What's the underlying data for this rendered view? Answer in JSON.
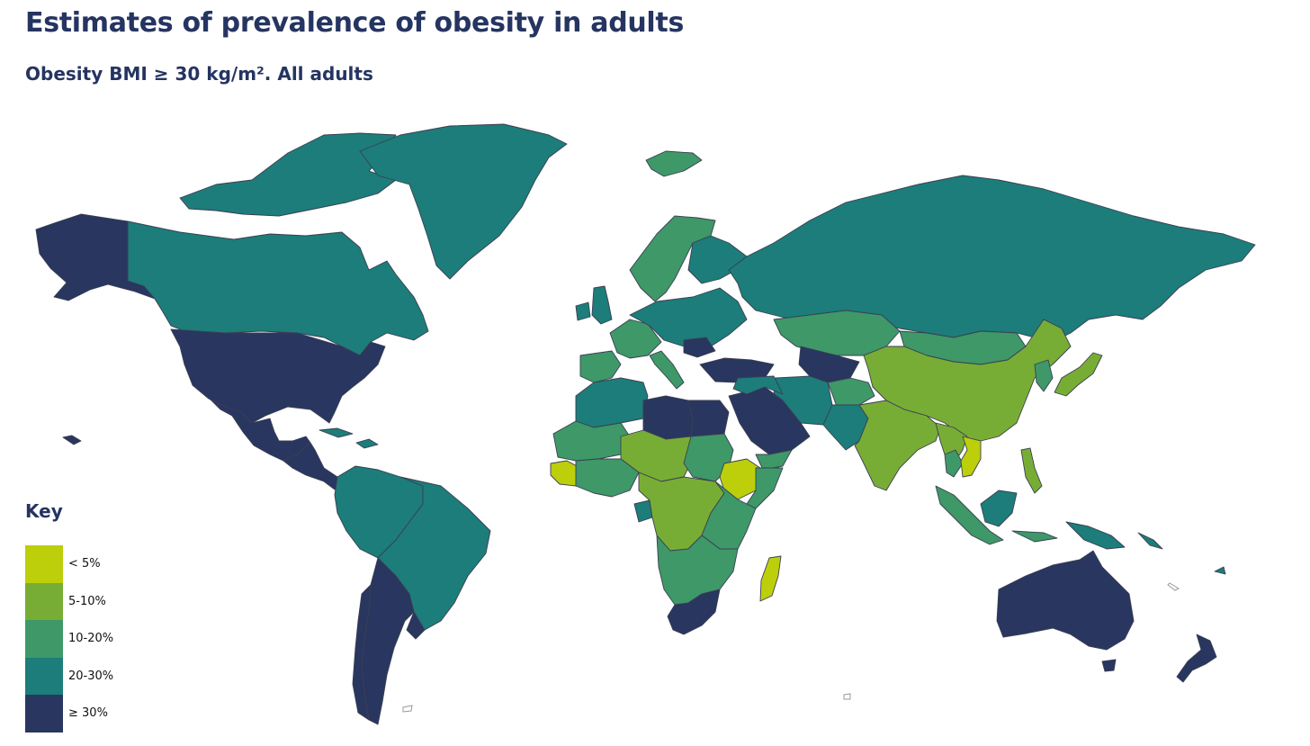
{
  "header": {
    "title": "Estimates of prevalence of obesity in adults",
    "subtitle": "Obesity BMI ≥ 30 kg/m². All adults"
  },
  "legend": {
    "title": "Key",
    "items": [
      {
        "label": "< 5%",
        "color": "#bccf0a"
      },
      {
        "label": "5-10%",
        "color": "#78ad35"
      },
      {
        "label": "10-20%",
        "color": "#3e9868"
      },
      {
        "label": "20-30%",
        "color": "#1c7d7a"
      },
      {
        "label": "≥ 30%",
        "color": "#283660"
      }
    ]
  },
  "map_data": {
    "type": "choropleth",
    "metric": "Obesity BMI ≥ 30 kg/m²",
    "regions": [
      {
        "name": "Alaska",
        "category": "≥ 30%"
      },
      {
        "name": "United States",
        "category": "≥ 30%"
      },
      {
        "name": "Mexico",
        "category": "≥ 30%"
      },
      {
        "name": "Central America",
        "category": "≥ 30%"
      },
      {
        "name": "Canada",
        "category": "20-30%"
      },
      {
        "name": "Canadian Arctic Islands",
        "category": "20-30%"
      },
      {
        "name": "Greenland",
        "category": "20-30%"
      },
      {
        "name": "Caribbean",
        "category": "20-30%"
      },
      {
        "name": "Northern South America",
        "category": "20-30%"
      },
      {
        "name": "Brazil",
        "category": "20-30%"
      },
      {
        "name": "Argentina",
        "category": "≥ 30%"
      },
      {
        "name": "Chile",
        "category": "≥ 30%"
      },
      {
        "name": "Uruguay",
        "category": "≥ 30%"
      },
      {
        "name": "Iceland",
        "category": "10-20%"
      },
      {
        "name": "Scandinavia",
        "category": "10-20%"
      },
      {
        "name": "Finland",
        "category": "20-30%"
      },
      {
        "name": "United Kingdom",
        "category": "20-30%"
      },
      {
        "name": "Ireland",
        "category": "20-30%"
      },
      {
        "name": "Iberia",
        "category": "10-20%"
      },
      {
        "name": "Western Europe",
        "category": "10-20%"
      },
      {
        "name": "Central and Eastern Europe",
        "category": "20-30%"
      },
      {
        "name": "Italy",
        "category": "10-20%"
      },
      {
        "name": "Romania",
        "category": "≥ 30%"
      },
      {
        "name": "Turkey",
        "category": "≥ 30%"
      },
      {
        "name": "Russia",
        "category": "20-30%"
      },
      {
        "name": "Kazakhstan",
        "category": "10-20%"
      },
      {
        "name": "Uzbekistan / Turkmenistan",
        "category": "≥ 30%"
      },
      {
        "name": "Iran",
        "category": "20-30%"
      },
      {
        "name": "Afghanistan / Tajikistan",
        "category": "10-20%"
      },
      {
        "name": "Pakistan",
        "category": "20-30%"
      },
      {
        "name": "Mongolia",
        "category": "10-20%"
      },
      {
        "name": "China",
        "category": "5-10%"
      },
      {
        "name": "India",
        "category": "5-10%"
      },
      {
        "name": "Myanmar / Laos",
        "category": "5-10%"
      },
      {
        "name": "Thailand",
        "category": "10-20%"
      },
      {
        "name": "Vietnam / Cambodia",
        "category": "< 5%"
      },
      {
        "name": "Korea",
        "category": "10-20%"
      },
      {
        "name": "Japan",
        "category": "5-10%"
      },
      {
        "name": "Philippines",
        "category": "5-10%"
      },
      {
        "name": "Malaysia / Indonesia",
        "category": "10-20%"
      },
      {
        "name": "Borneo",
        "category": "20-30%"
      },
      {
        "name": "Papua New Guinea",
        "category": "20-30%"
      },
      {
        "name": "Pacific Islands",
        "category": "20-30%"
      },
      {
        "name": "Australia",
        "category": "≥ 30%"
      },
      {
        "name": "New Zealand",
        "category": "≥ 30%"
      },
      {
        "name": "Morocco / Algeria",
        "category": "20-30%"
      },
      {
        "name": "Mauritania / Mali",
        "category": "10-20%"
      },
      {
        "name": "Libya",
        "category": "≥ 30%"
      },
      {
        "name": "Egypt",
        "category": "≥ 30%"
      },
      {
        "name": "Saudi Arabia",
        "category": "≥ 30%"
      },
      {
        "name": "Iraq / Syria",
        "category": "20-30%"
      },
      {
        "name": "Yemen / Oman",
        "category": "10-20%"
      },
      {
        "name": "Niger / Chad",
        "category": "5-10%"
      },
      {
        "name": "Sudan",
        "category": "10-20%"
      },
      {
        "name": "Ethiopia",
        "category": "< 5%"
      },
      {
        "name": "Somalia",
        "category": "10-20%"
      },
      {
        "name": "Guinea / Sierra Leone",
        "category": "< 5%"
      },
      {
        "name": "West Africa coast",
        "category": "10-20%"
      },
      {
        "name": "DR Congo / CAR",
        "category": "5-10%"
      },
      {
        "name": "Gabon",
        "category": "20-30%"
      },
      {
        "name": "East Africa",
        "category": "10-20%"
      },
      {
        "name": "Southern Africa",
        "category": "10-20%"
      },
      {
        "name": "South Africa",
        "category": "≥ 30%"
      },
      {
        "name": "Madagascar",
        "category": "< 5%"
      }
    ]
  }
}
